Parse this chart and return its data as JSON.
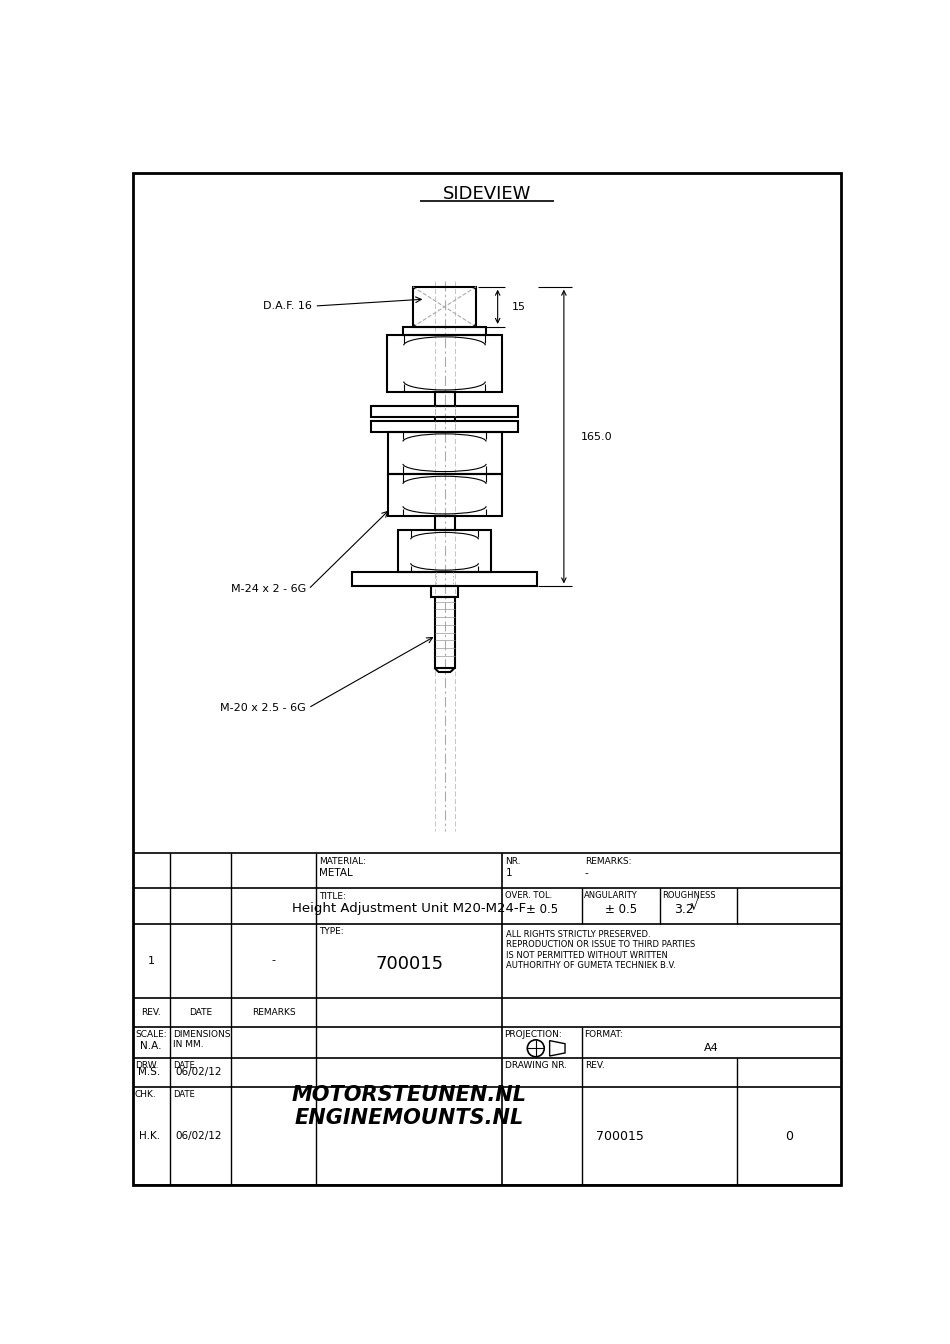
{
  "title": "SIDEVIEW",
  "page_bg": "#ffffff",
  "label_daf": "D.A.F. 16",
  "label_m24": "M-24 x 2 - 6G",
  "label_m20": "M-20 x 2.5 - 6G",
  "dim_15": "15",
  "dim_165": "165.0",
  "tb_material_label": "MATERIAL:",
  "tb_material": "METAL",
  "tb_nr_label": "NR.",
  "tb_nr": "1",
  "tb_remarks_label": "REMARKS:",
  "tb_remarks": "-",
  "tb_title_label": "TITLE:",
  "tb_title": "Height Adjustment Unit M20-M24-F",
  "tb_type_label": "TYPE:",
  "tb_type": "700015",
  "tb_overtol_label": "OVER. TOL.",
  "tb_overtol": "± 0.5",
  "tb_angularity_label": "ANGULARITY",
  "tb_angularity": "± 0.5",
  "tb_roughness_label": "ROUGHNESS",
  "tb_roughness": "3.2",
  "tb_rights": "ALL RIGHTS STRICTLY PRESERVED.\nREPRODUCTION OR ISSUE TO THIRD PARTIES\nIS NOT PERMITTED WITHOUT WRITTEN\nAUTHORITHY OF GUMETA TECHNIEK B.V.",
  "tb_scale_label": "SCALE:",
  "tb_scale": "N.A.",
  "tb_dim_label": "DIMENSIONS\nIN MM.",
  "tb_company1": "MOTORSTEUNEN.NL",
  "tb_company2": "ENGINEMOUNTS.NL",
  "tb_projection_label": "PROJECTION:",
  "tb_format_label": "FORMAT:",
  "tb_format": "A4",
  "tb_drw_label": "DRW.",
  "tb_drw_name": "M.S.",
  "tb_drw_date_label": "DATE",
  "tb_drw_date": "06/02/12",
  "tb_chk_label": "CHK.",
  "tb_chk_name": "H.K.",
  "tb_chk_date_label": "DATE",
  "tb_chk_date": "06/02/12",
  "tb_drawing_nr_label": "DRAWING NR.",
  "tb_drawing_nr": "700015",
  "tb_rev_label": "REV.",
  "tb_rev": "0",
  "tb_rev_row1": "1",
  "tb_date_col": "DATE",
  "tb_remarks_col": "REMARKS"
}
